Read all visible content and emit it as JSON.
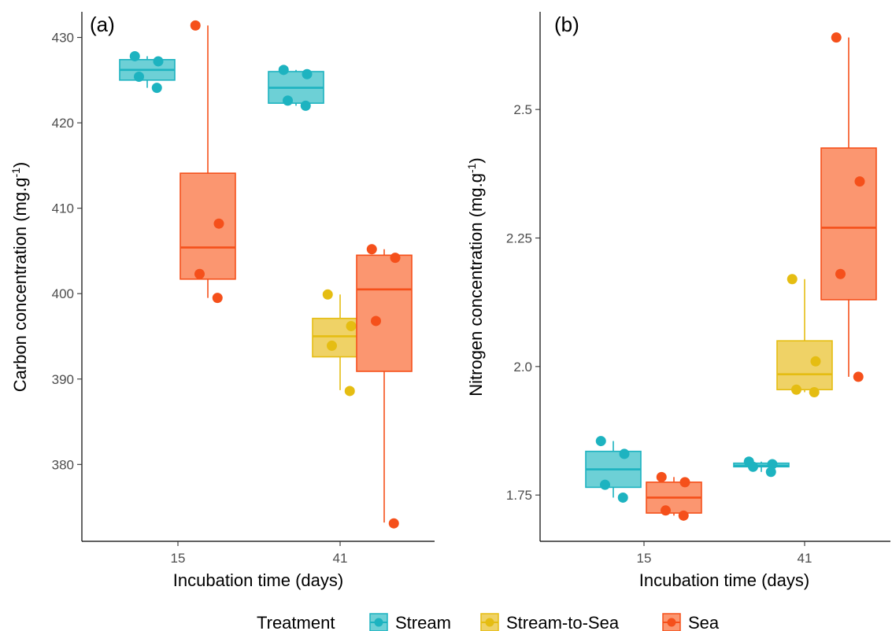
{
  "chart_data": [
    {
      "type": "box",
      "panel_label": "(a)",
      "xlabel": "Incubation time (days)",
      "ylabel_main": "Carbon concentration (mg.g",
      "ylabel_sup": "-1",
      "ylabel_end": ")",
      "ylim": [
        371,
        433
      ],
      "yticks": [
        {
          "value": 380,
          "label": "380"
        },
        {
          "value": 390,
          "label": "390"
        },
        {
          "value": 400,
          "label": "400"
        },
        {
          "value": 410,
          "label": "410"
        },
        {
          "value": 420,
          "label": "420"
        },
        {
          "value": 430,
          "label": "430"
        }
      ],
      "categories": [
        "15",
        "41"
      ],
      "groups": [
        {
          "time": "15",
          "treatment": "Stream",
          "min": 424.1,
          "q1": 425.0,
          "median": 426.2,
          "q3": 427.4,
          "max": 427.8,
          "points": [
            427.8,
            427.2,
            425.4,
            424.1
          ]
        },
        {
          "time": "15",
          "treatment": "Sea",
          "min": 399.5,
          "q1": 401.7,
          "median": 405.4,
          "q3": 414.1,
          "max": 431.4,
          "points": [
            431.4,
            408.2,
            402.3,
            399.5
          ]
        },
        {
          "time": "41",
          "treatment": "Stream",
          "min": 422.0,
          "q1": 422.3,
          "median": 424.1,
          "q3": 426.0,
          "max": 426.2,
          "points": [
            426.2,
            425.7,
            422.6,
            422.0
          ]
        },
        {
          "time": "41",
          "treatment": "Stream-to-Sea",
          "min": 388.7,
          "q1": 392.6,
          "median": 395.0,
          "q3": 397.1,
          "max": 399.9,
          "points": [
            399.9,
            396.2,
            393.9,
            388.6
          ]
        },
        {
          "time": "41",
          "treatment": "Sea",
          "min": 373.2,
          "q1": 390.9,
          "median": 400.5,
          "q3": 404.5,
          "max": 405.2,
          "points": [
            405.2,
            404.2,
            396.8,
            373.1
          ]
        }
      ]
    },
    {
      "type": "box",
      "panel_label": "(b)",
      "xlabel": "Incubation time (days)",
      "ylabel_main": "Nitrogen concentration (mg.g",
      "ylabel_sup": "-1",
      "ylabel_end": ")",
      "ylim": [
        1.66,
        2.69
      ],
      "yticks": [
        {
          "value": 1.75,
          "label": "1.75"
        },
        {
          "value": 2.0,
          "label": "2.0"
        },
        {
          "value": 2.25,
          "label": "2.25"
        },
        {
          "value": 2.5,
          "label": "2.5"
        }
      ],
      "categories": [
        "15",
        "41"
      ],
      "groups": [
        {
          "time": "15",
          "treatment": "Stream",
          "min": 1.745,
          "q1": 1.765,
          "median": 1.8,
          "q3": 1.835,
          "max": 1.855,
          "points": [
            1.855,
            1.83,
            1.77,
            1.745
          ]
        },
        {
          "time": "15",
          "treatment": "Sea",
          "min": 1.71,
          "q1": 1.715,
          "median": 1.745,
          "q3": 1.775,
          "max": 1.785,
          "points": [
            1.785,
            1.775,
            1.72,
            1.71
          ]
        },
        {
          "time": "41",
          "treatment": "Stream",
          "min": 1.795,
          "q1": 1.805,
          "median": 1.807,
          "q3": 1.812,
          "max": 1.815,
          "points": [
            1.815,
            1.81,
            1.805,
            1.795
          ]
        },
        {
          "time": "41",
          "treatment": "Stream-to-Sea",
          "min": 1.95,
          "q1": 1.955,
          "median": 1.985,
          "q3": 2.05,
          "max": 2.17,
          "points": [
            2.17,
            2.01,
            1.955,
            1.95
          ]
        },
        {
          "time": "41",
          "treatment": "Sea",
          "min": 1.98,
          "q1": 2.13,
          "median": 2.27,
          "q3": 2.425,
          "max": 2.64,
          "points": [
            2.64,
            2.36,
            2.18,
            1.98
          ]
        }
      ]
    }
  ],
  "legend": {
    "title": "Treatment",
    "placement": "bottom",
    "items": [
      {
        "label": "Stream",
        "color": "#1db3c0",
        "fill": "#6dd0d6"
      },
      {
        "label": "Stream-to-Sea",
        "color": "#e5bd12",
        "fill": "#efd266"
      },
      {
        "label": "Sea",
        "color": "#f5501b",
        "fill": "#fb9670"
      }
    ]
  },
  "treatment_colors": {
    "Stream": {
      "stroke": "#1db3c0",
      "fill": "#6dd0d6"
    },
    "Stream-to-Sea": {
      "stroke": "#e5bd12",
      "fill": "#efd266"
    },
    "Sea": {
      "stroke": "#f5501b",
      "fill": "#fb9670"
    }
  }
}
